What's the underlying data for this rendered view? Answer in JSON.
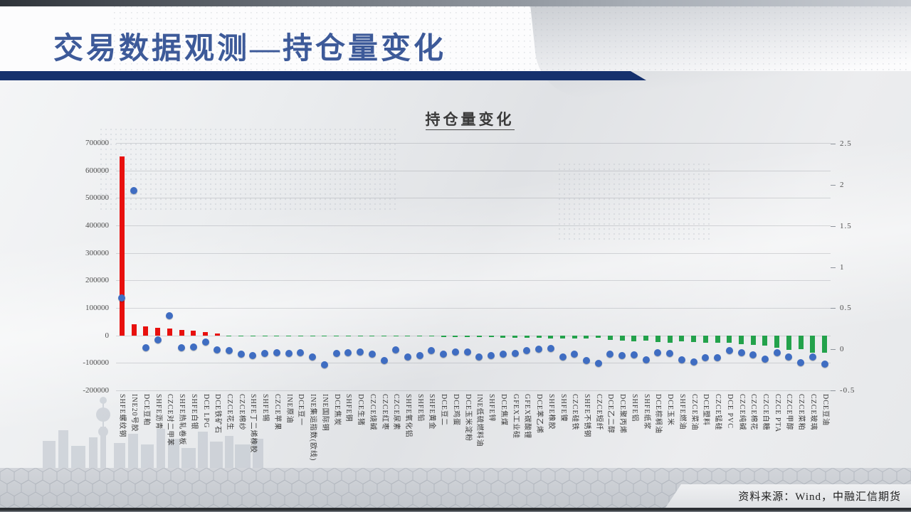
{
  "slide": {
    "title": "交易数据观测—持仓量变化",
    "source": "资料来源：Wind，中融汇信期货"
  },
  "chart_data": {
    "type": "combo",
    "title": "持仓量变化",
    "grid": true,
    "legend": "none",
    "categories": [
      "SHFE螺纹钢",
      "INE20号胶",
      "DCE豆粕",
      "SHFE沥青",
      "CZCE对二甲苯",
      "SHFE热轧卷板",
      "SHFE白银",
      "DCE LPG",
      "DCE铁矿石",
      "CZCE花生",
      "CZCE棉纱",
      "SHFE丁二烯橡胶",
      "SHFE锡",
      "CZCE苹果",
      "INE原油",
      "DCE豆一",
      "INE集运指数(欧线)",
      "INE国际铜",
      "DCE焦炭",
      "SHFE铜",
      "DCE生猪",
      "CZCE烧碱",
      "CZCE红枣",
      "CZCE尿素",
      "SHFE氧化铝",
      "SHFE铅",
      "SHFE黄金",
      "DCE豆二",
      "DCE鸡蛋",
      "DCE玉米淀粉",
      "INE低硫燃料油",
      "SHFE锌",
      "DCE焦煤",
      "GFEX工业硅",
      "GFEX碳酸锂",
      "DCE苯乙烯",
      "SHFE橡胶",
      "SHFE镍",
      "CZCE硅铁",
      "SHFE不锈钢",
      "CZCE短纤",
      "DCE乙二醇",
      "DCE聚丙烯",
      "SHFE铝",
      "SHFE纸浆",
      "DCE棕榈油",
      "DCE玉米",
      "SHFE燃油",
      "CZCE菜油",
      "DCE塑料",
      "CZCE锰硅",
      "DCE PVC",
      "CZCE纯碱",
      "CZCE棉花",
      "CZCE白糖",
      "CZCE PTA",
      "CZCE甲醇",
      "CZCE菜粕",
      "CZCE玻璃",
      "DCE豆油"
    ],
    "series": [
      {
        "type": "bar",
        "axis": "left",
        "positive_color": "#e8100e",
        "negative_color": "#23a24b",
        "values": [
          650000,
          40000,
          34000,
          28000,
          25000,
          21000,
          16000,
          11000,
          7000,
          -1000,
          -1500,
          -2000,
          -2000,
          -2500,
          -2500,
          -2500,
          -3000,
          -3000,
          -3000,
          -3500,
          -3500,
          -4000,
          -4000,
          -3000,
          -3500,
          -4000,
          -4500,
          -5000,
          -5500,
          -6000,
          -6500,
          -7000,
          -7500,
          -8000,
          -9000,
          -9500,
          -10000,
          -10500,
          -11000,
          -12000,
          -8500,
          -15500,
          -18000,
          -20500,
          -19000,
          -23500,
          -26000,
          -21000,
          -23500,
          -27500,
          -26000,
          -27500,
          -32000,
          -34500,
          -38000,
          -45000,
          -53000,
          -49000,
          -64000,
          -62000
        ]
      },
      {
        "type": "scatter",
        "axis": "right",
        "color": "#3f6dc2",
        "values": [
          0.62,
          1.93,
          0.02,
          0.11,
          0.41,
          0.02,
          0.03,
          0.09,
          -0.01,
          -0.02,
          -0.06,
          -0.08,
          -0.05,
          -0.04,
          -0.05,
          -0.04,
          -0.09,
          -0.19,
          -0.05,
          -0.04,
          -0.03,
          -0.06,
          -0.14,
          -0.01,
          -0.09,
          -0.08,
          -0.02,
          -0.06,
          -0.03,
          -0.03,
          -0.09,
          -0.08,
          -0.06,
          -0.05,
          -0.02,
          0.0,
          0.01,
          -0.09,
          -0.06,
          -0.14,
          -0.17,
          -0.06,
          -0.08,
          -0.07,
          -0.13,
          -0.04,
          -0.05,
          -0.13,
          -0.15,
          -0.1,
          -0.1,
          -0.02,
          -0.04,
          -0.07,
          -0.12,
          -0.04,
          -0.09,
          -0.16,
          -0.09,
          -0.18
        ]
      }
    ],
    "left_axis": {
      "max": 700000,
      "min": -200000,
      "step": 100000,
      "tick_labels": [
        "700000",
        "600000",
        "500000",
        "400000",
        "300000",
        "200000",
        "100000",
        "0",
        "-100000",
        "-200000"
      ]
    },
    "right_axis": {
      "max": 2.5,
      "min": -0.5,
      "step": 0.5,
      "tick_labels": [
        "2.5",
        "2",
        "1.5",
        "1",
        "0.5",
        "0",
        "-0.5"
      ]
    }
  }
}
